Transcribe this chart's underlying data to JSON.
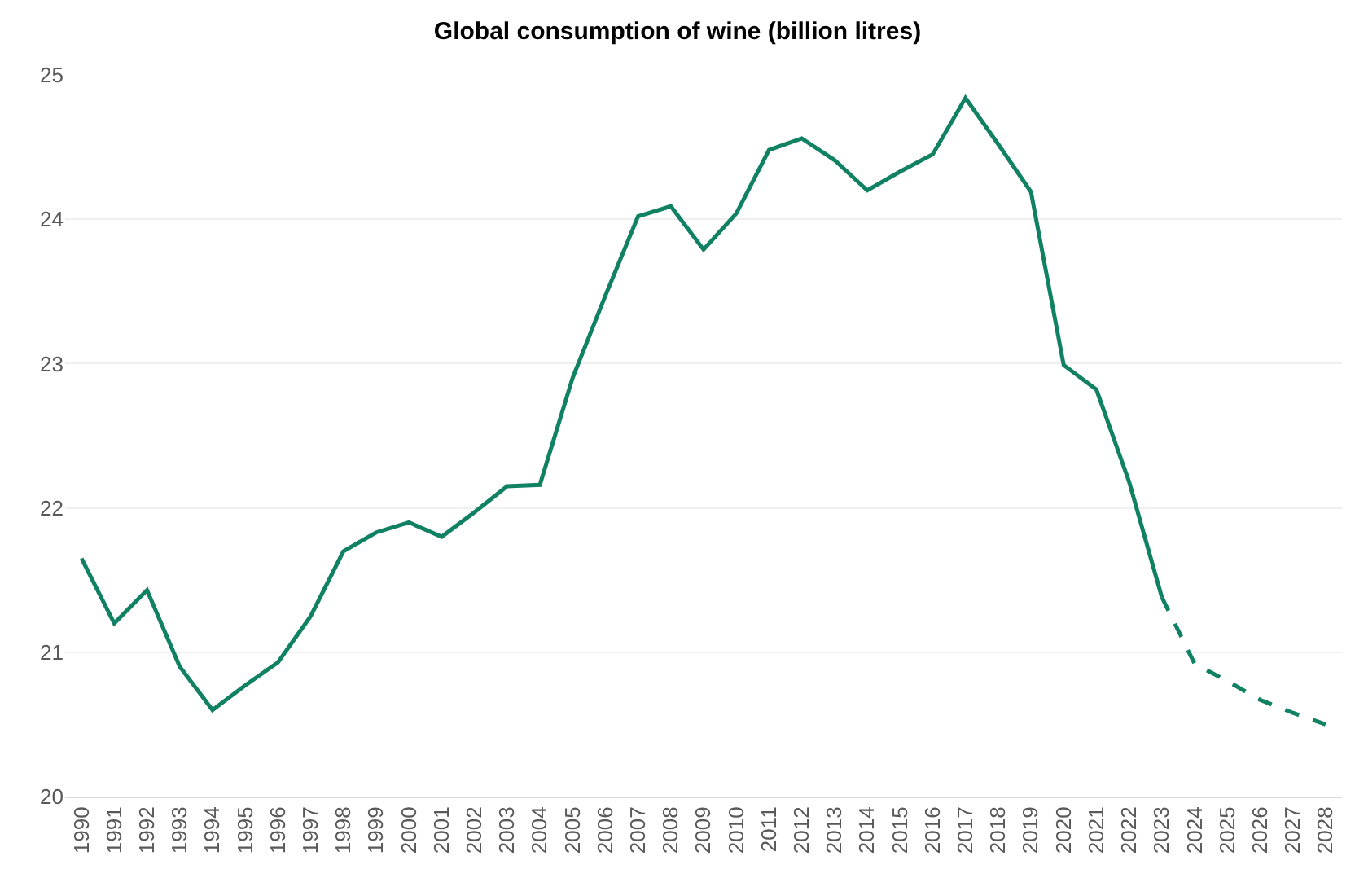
{
  "chart_data": {
    "type": "line",
    "title": "Global consumption of wine (billion litres)",
    "categories": [
      "1990",
      "1991",
      "1992",
      "1993",
      "1994",
      "1995",
      "1996",
      "1997",
      "1998",
      "1999",
      "2000",
      "2001",
      "2002",
      "2003",
      "2004",
      "2005",
      "2006",
      "2007",
      "2008",
      "2009",
      "2010",
      "2011",
      "2012",
      "2013",
      "2014",
      "2015",
      "2016",
      "2017",
      "2018",
      "2019",
      "2020",
      "2021",
      "2022",
      "2023",
      "2024",
      "2025",
      "2026",
      "2027",
      "2028"
    ],
    "series": [
      {
        "color": "#118163",
        "line_style": "solid",
        "values": [
          21.65,
          21.2,
          21.43,
          20.9,
          20.6,
          20.77,
          20.93,
          21.25,
          21.7,
          21.83,
          21.9,
          21.8,
          21.97,
          22.15,
          22.16,
          22.9,
          23.47,
          24.02,
          24.09,
          23.79,
          24.04,
          24.48,
          24.56,
          24.41,
          24.2,
          24.33,
          24.45,
          24.84,
          24.52,
          24.19,
          22.99,
          22.82,
          22.18,
          21.38,
          null,
          null,
          null,
          null,
          null
        ]
      },
      {
        "color": "#118163",
        "line_style": "dashed",
        "values": [
          null,
          null,
          null,
          null,
          null,
          null,
          null,
          null,
          null,
          null,
          null,
          null,
          null,
          null,
          null,
          null,
          null,
          null,
          null,
          null,
          null,
          null,
          null,
          null,
          null,
          null,
          null,
          null,
          null,
          null,
          null,
          null,
          null,
          21.38,
          20.92,
          20.8,
          20.67,
          20.58,
          20.5
        ]
      }
    ],
    "ylim": [
      20,
      25
    ],
    "yticks": [
      20,
      21,
      22,
      23,
      24,
      25
    ],
    "grid": "y",
    "marker": "none"
  }
}
